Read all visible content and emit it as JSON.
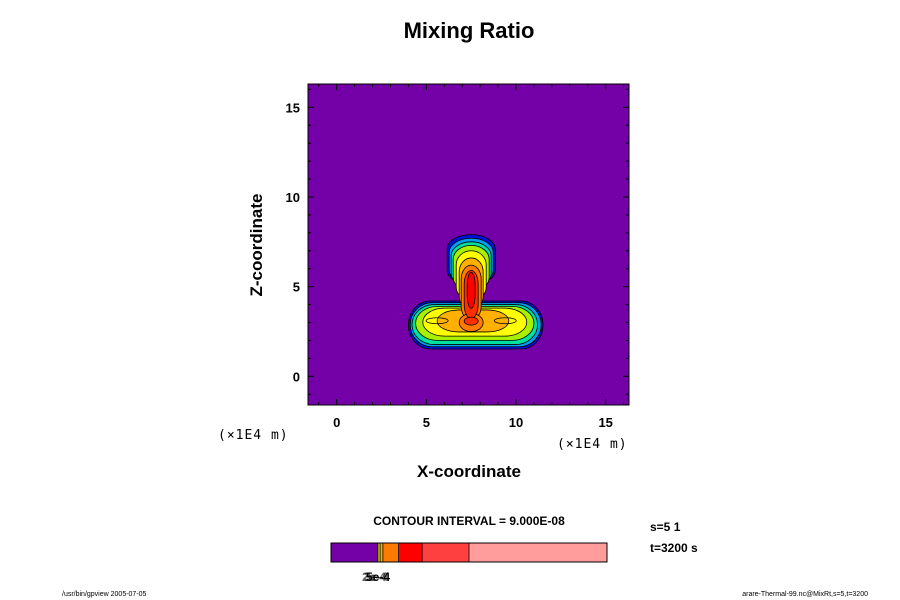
{
  "chart_data": {
    "type": "heatmap",
    "title": "Mixing Ratio",
    "xlabel": "X-coordinate",
    "ylabel": "Z-coordinate",
    "x_unit": "(×1E4 m)",
    "z_unit": "(×1E4 m)",
    "xlim": [
      -1.6,
      16.3
    ],
    "ylim": [
      -1.6,
      16.3
    ],
    "x_ticks": [
      0,
      5,
      10,
      15
    ],
    "y_ticks": [
      0,
      5,
      10,
      15
    ],
    "background_color": "#7400a8",
    "fill_levels": [
      {
        "color": "#0010d8"
      },
      {
        "color": "#00a0f0"
      },
      {
        "color": "#00e0a0"
      },
      {
        "color": "#a8f000"
      },
      {
        "color": "#ffff00"
      },
      {
        "color": "#ffb000"
      },
      {
        "color": "#ff7a00"
      },
      {
        "color": "#ff3000"
      },
      {
        "color": "#ff0000"
      }
    ],
    "contour_interval_text": "CONTOUR INTERVAL = 9.000E-08",
    "colorbar_label": "5e-4",
    "colorbar_overlap_labels": [
      "2e-4",
      "3e-4"
    ],
    "colorbar_segments": [
      {
        "start": 0.0,
        "end": 0.17,
        "color": "#7400a8"
      },
      {
        "start": 0.17,
        "end": 0.178,
        "color": "#d0e000"
      },
      {
        "start": 0.178,
        "end": 0.188,
        "color": "#ffb000"
      },
      {
        "start": 0.188,
        "end": 0.245,
        "color": "#ff7a00"
      },
      {
        "start": 0.245,
        "end": 0.33,
        "color": "#ff0000"
      },
      {
        "start": 0.33,
        "end": 0.5,
        "color": "#ff4040"
      },
      {
        "start": 0.5,
        "end": 1.0,
        "color": "#ff9c9c"
      }
    ],
    "info_s": "s=5 1",
    "info_t": "t=3200 s"
  },
  "footer": {
    "left": "/usr/bin/gpview 2005-07-05",
    "right": "arare-Thermal-99.nc@MixRt,s=5,t=3200"
  }
}
